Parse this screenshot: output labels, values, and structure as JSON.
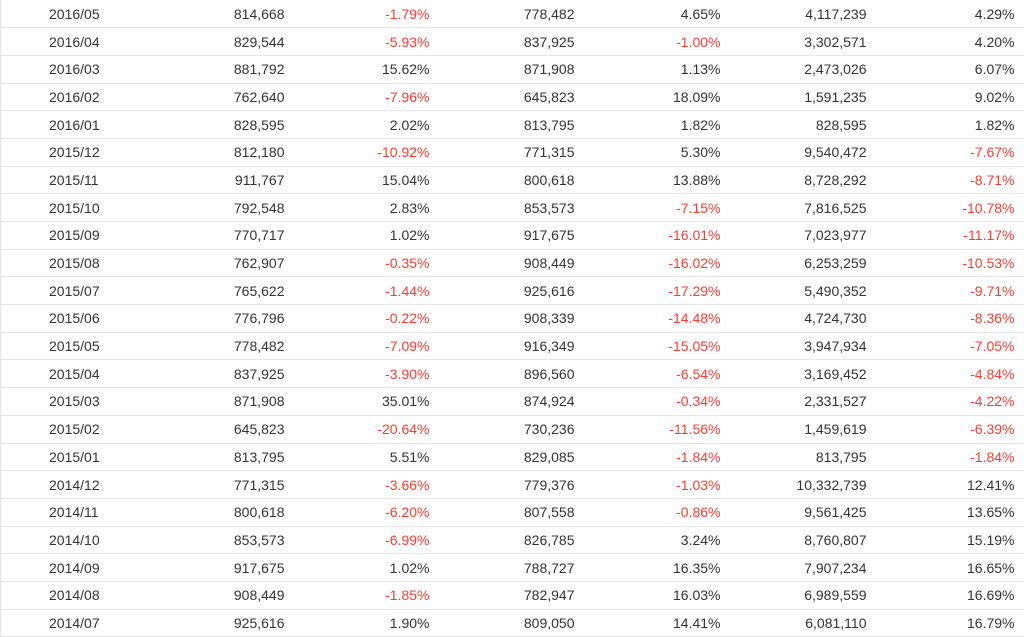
{
  "colors": {
    "negative": "#ff3b30",
    "text": "#333333",
    "divider": "#e6e6e6"
  },
  "table": {
    "rows": [
      [
        "2016/05",
        "814,668",
        "-1.79%",
        "778,482",
        "4.65%",
        "4,117,239",
        "4.29%"
      ],
      [
        "2016/04",
        "829,544",
        "-5.93%",
        "837,925",
        "-1.00%",
        "3,302,571",
        "4.20%"
      ],
      [
        "2016/03",
        "881,792",
        "15.62%",
        "871,908",
        "1.13%",
        "2,473,026",
        "6.07%"
      ],
      [
        "2016/02",
        "762,640",
        "-7.96%",
        "645,823",
        "18.09%",
        "1,591,235",
        "9.02%"
      ],
      [
        "2016/01",
        "828,595",
        "2.02%",
        "813,795",
        "1.82%",
        "828,595",
        "1.82%"
      ],
      [
        "2015/12",
        "812,180",
        "-10.92%",
        "771,315",
        "5.30%",
        "9,540,472",
        "-7.67%"
      ],
      [
        "2015/11",
        "911,767",
        "15.04%",
        "800,618",
        "13.88%",
        "8,728,292",
        "-8.71%"
      ],
      [
        "2015/10",
        "792,548",
        "2.83%",
        "853,573",
        "-7.15%",
        "7,816,525",
        "-10.78%"
      ],
      [
        "2015/09",
        "770,717",
        "1.02%",
        "917,675",
        "-16.01%",
        "7,023,977",
        "-11.17%"
      ],
      [
        "2015/08",
        "762,907",
        "-0.35%",
        "908,449",
        "-16.02%",
        "6,253,259",
        "-10.53%"
      ],
      [
        "2015/07",
        "765,622",
        "-1.44%",
        "925,616",
        "-17.29%",
        "5,490,352",
        "-9.71%"
      ],
      [
        "2015/06",
        "776,796",
        "-0.22%",
        "908,339",
        "-14.48%",
        "4,724,730",
        "-8.36%"
      ],
      [
        "2015/05",
        "778,482",
        "-7.09%",
        "916,349",
        "-15.05%",
        "3,947,934",
        "-7.05%"
      ],
      [
        "2015/04",
        "837,925",
        "-3.90%",
        "896,560",
        "-6.54%",
        "3,169,452",
        "-4.84%"
      ],
      [
        "2015/03",
        "871,908",
        "35.01%",
        "874,924",
        "-0.34%",
        "2,331,527",
        "-4.22%"
      ],
      [
        "2015/02",
        "645,823",
        "-20.64%",
        "730,236",
        "-11.56%",
        "1,459,619",
        "-6.39%"
      ],
      [
        "2015/01",
        "813,795",
        "5.51%",
        "829,085",
        "-1.84%",
        "813,795",
        "-1.84%"
      ],
      [
        "2014/12",
        "771,315",
        "-3.66%",
        "779,376",
        "-1.03%",
        "10,332,739",
        "12.41%"
      ],
      [
        "2014/11",
        "800,618",
        "-6.20%",
        "807,558",
        "-0.86%",
        "9,561,425",
        "13.65%"
      ],
      [
        "2014/10",
        "853,573",
        "-6.99%",
        "826,785",
        "3.24%",
        "8,760,807",
        "15.19%"
      ],
      [
        "2014/09",
        "917,675",
        "1.02%",
        "788,727",
        "16.35%",
        "7,907,234",
        "16.65%"
      ],
      [
        "2014/08",
        "908,449",
        "-1.85%",
        "782,947",
        "16.03%",
        "6,989,559",
        "16.69%"
      ],
      [
        "2014/07",
        "925,616",
        "1.90%",
        "809,050",
        "14.41%",
        "6,081,110",
        "16.79%"
      ]
    ]
  }
}
